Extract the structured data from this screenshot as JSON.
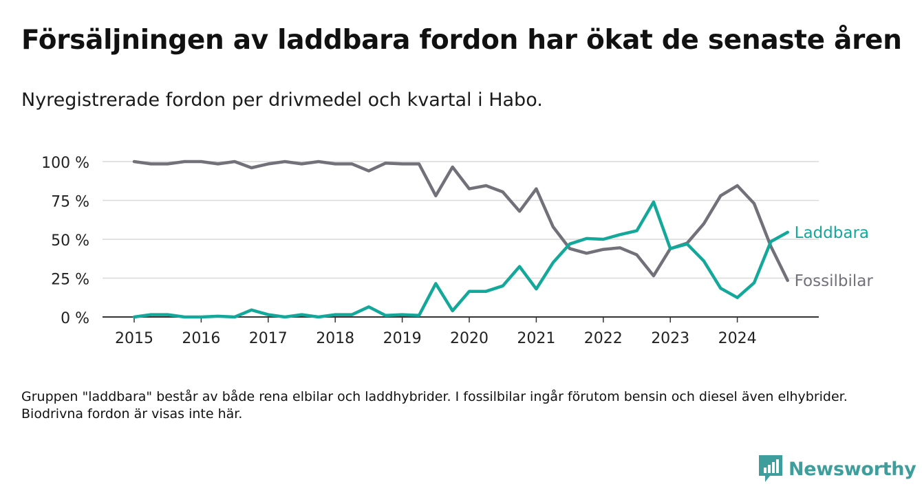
{
  "title": "Försäljningen av laddbara fordon har ökat de senaste åren",
  "subtitle": "Nyregistrerade fordon per drivmedel och kvartal i Habo.",
  "footnote": "Gruppen \"laddbara\" består av både rena elbilar och laddhybrider. I fossilbilar ingår förutom bensin och diesel även elhybrider. Biodrivna fordon är visas inte här.",
  "logo": {
    "text": "Newsworthy",
    "icon": "bar-chart-bubble-icon"
  },
  "colors": {
    "laddbara": "#13a89a",
    "fossil": "#727078",
    "grid": "#d9d9d9",
    "axis": "#333333",
    "logo": "#3e9e9b"
  },
  "chart_data": {
    "type": "line",
    "title": "Nyregistrerade fordon per drivmedel och kvartal i Habo.",
    "xlabel": "",
    "ylabel": "",
    "xlim": [
      2015,
      2025
    ],
    "ylim": [
      0,
      100
    ],
    "x_ticks": [
      2015,
      2016,
      2017,
      2018,
      2019,
      2020,
      2021,
      2022,
      2023,
      2024
    ],
    "x_tick_labels": [
      "2015",
      "2016",
      "2017",
      "2018",
      "2019",
      "2020",
      "2021",
      "2022",
      "2023",
      "2024"
    ],
    "y_ticks": [
      0,
      25,
      50,
      75,
      100
    ],
    "y_tick_labels": [
      "0 %",
      "25 %",
      "50 %",
      "75 %",
      "100 %"
    ],
    "grid": true,
    "legend": "inline-right",
    "x": [
      2015.0,
      2015.25,
      2015.5,
      2015.75,
      2016.0,
      2016.25,
      2016.5,
      2016.75,
      2017.0,
      2017.25,
      2017.5,
      2017.75,
      2018.0,
      2018.25,
      2018.5,
      2018.75,
      2019.0,
      2019.25,
      2019.5,
      2019.75,
      2020.0,
      2020.25,
      2020.5,
      2020.75,
      2021.0,
      2021.25,
      2021.5,
      2021.75,
      2022.0,
      2022.25,
      2022.5,
      2022.75,
      2023.0,
      2023.25,
      2023.5,
      2023.75,
      2024.0,
      2024.25,
      2024.5,
      2024.75
    ],
    "series": [
      {
        "name": "Fossilbilar",
        "key": "fossil",
        "values": [
          100,
          98.5,
          98.5,
          100,
          100,
          98.5,
          100,
          96,
          98.5,
          100,
          98.5,
          100,
          98.5,
          98.5,
          94,
          99,
          98.5,
          98.5,
          78,
          96.5,
          82.5,
          84.5,
          80.5,
          68,
          82.5,
          58,
          44,
          41,
          43.5,
          44.5,
          40,
          26.5,
          44,
          47.5,
          60,
          78,
          84.5,
          73,
          45.5,
          23.5
        ]
      },
      {
        "name": "Laddbara",
        "key": "laddbara",
        "values": [
          0,
          1.5,
          1.5,
          0,
          0,
          0.5,
          0,
          4.5,
          1.5,
          0,
          1.5,
          0,
          1.5,
          1.5,
          6.5,
          1,
          1.5,
          1,
          21.5,
          4,
          16.5,
          16.5,
          20,
          32.5,
          18,
          35,
          47,
          50.5,
          50,
          53,
          55.5,
          74,
          44,
          47,
          36,
          18.5,
          12.5,
          22,
          48.5,
          54.5
        ]
      }
    ]
  }
}
